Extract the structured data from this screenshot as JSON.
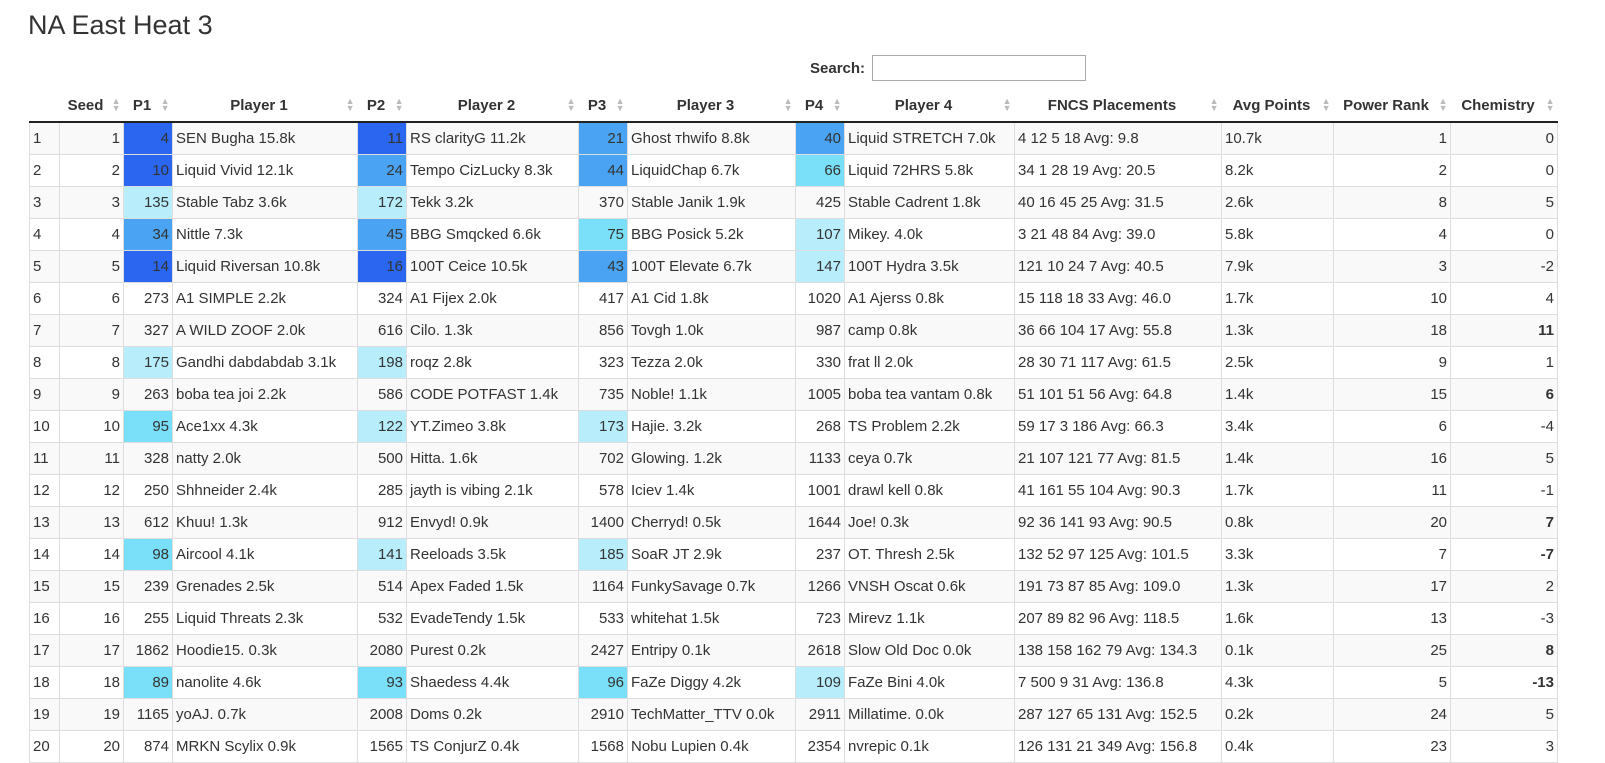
{
  "title": "NA East Heat 3",
  "search": {
    "label": "Search:",
    "value": ""
  },
  "columns": [
    "",
    "Seed",
    "P1",
    "Player 1",
    "P2",
    "Player 2",
    "P3",
    "Player 3",
    "P4",
    "Player 4",
    "FNCS Placements",
    "Avg Points",
    "Power Rank",
    "Chemistry"
  ],
  "rows": [
    [
      "1",
      "1",
      "4",
      "SEN Bugha 15.8k",
      "11",
      "RS clarityG 11.2k",
      "21",
      "Ghost тhwifo 8.8k",
      "40",
      "Liquid STRETCH 7.0k",
      "4 12 5 18 Avg: 9.8",
      "10.7k",
      "1",
      "0"
    ],
    [
      "2",
      "2",
      "10",
      "Liquid Vivid 12.1k",
      "24",
      "Tempo CizLucky 8.3k",
      "44",
      "LiquidChap 6.7k",
      "66",
      "Liquid 72HRS 5.8k",
      "34 1 28 19 Avg: 20.5",
      "8.2k",
      "2",
      "0"
    ],
    [
      "3",
      "3",
      "135",
      "Stable Tabz 3.6k",
      "172",
      "Tekk 3.2k",
      "370",
      "Stable Janik 1.9k",
      "425",
      "Stable Cadrent 1.8k",
      "40 16 45 25 Avg: 31.5",
      "2.6k",
      "8",
      "5"
    ],
    [
      "4",
      "4",
      "34",
      "Nittle 7.3k",
      "45",
      "BBG Smqcked 6.6k",
      "75",
      "BBG Posick 5.2k",
      "107",
      "Mikey. 4.0k",
      "3 21 48 84 Avg: 39.0",
      "5.8k",
      "4",
      "0"
    ],
    [
      "5",
      "5",
      "14",
      "Liquid Riversan 10.8k",
      "16",
      "100T Ceice 10.5k",
      "43",
      "100T Elevate 6.7k",
      "147",
      "100T Hydra 3.5k",
      "121 10 24 7 Avg: 40.5",
      "7.9k",
      "3",
      "-2"
    ],
    [
      "6",
      "6",
      "273",
      "A1 SIMPLE 2.2k",
      "324",
      "A1 Fijex 2.0k",
      "417",
      "A1 Cid 1.8k",
      "1020",
      "A1 Ajerss 0.8k",
      "15 118 18 33 Avg: 46.0",
      "1.7k",
      "10",
      "4"
    ],
    [
      "7",
      "7",
      "327",
      "A WILD ZOOF 2.0k",
      "616",
      "Cilo. 1.3k",
      "856",
      "Tovgh 1.0k",
      "987",
      "camp 0.8k",
      "36 66 104 17 Avg: 55.8",
      "1.3k",
      "18",
      "11"
    ],
    [
      "8",
      "8",
      "175",
      "Gandhi dabdabdab 3.1k",
      "198",
      "roqz 2.8k",
      "323",
      "Tezza 2.0k",
      "330",
      "frat ll 2.0k",
      "28 30 71 117 Avg: 61.5",
      "2.5k",
      "9",
      "1"
    ],
    [
      "9",
      "9",
      "263",
      "boba tea joi 2.2k",
      "586",
      "CODE POTFAST 1.4k",
      "735",
      "Noble! 1.1k",
      "1005",
      "boba tea vantam 0.8k",
      "51 101 51 56 Avg: 64.8",
      "1.4k",
      "15",
      "6"
    ],
    [
      "10",
      "10",
      "95",
      "Ace1xx 4.3k",
      "122",
      "YT.Zimeo 3.8k",
      "173",
      "Hajie. 3.2k",
      "268",
      "TS Problem 2.2k",
      "59 17 3 186 Avg: 66.3",
      "3.4k",
      "6",
      "-4"
    ],
    [
      "11",
      "11",
      "328",
      "natty 2.0k",
      "500",
      "Hitta. 1.6k",
      "702",
      "Glowing. 1.2k",
      "1133",
      "ceya 0.7k",
      "21 107 121 77 Avg: 81.5",
      "1.4k",
      "16",
      "5"
    ],
    [
      "12",
      "12",
      "250",
      "Shhneider 2.4k",
      "285",
      "jayth is vibing 2.1k",
      "578",
      "Iciev 1.4k",
      "1001",
      "drawl kell 0.8k",
      "41 161 55 104 Avg: 90.3",
      "1.7k",
      "11",
      "-1"
    ],
    [
      "13",
      "13",
      "612",
      "Khuu! 1.3k",
      "912",
      "Envyd! 0.9k",
      "1400",
      "Cherryd! 0.5k",
      "1644",
      "Joe! 0.3k",
      "92 36 141 93 Avg: 90.5",
      "0.8k",
      "20",
      "7"
    ],
    [
      "14",
      "14",
      "98",
      "Aircool 4.1k",
      "141",
      "Reeloads 3.5k",
      "185",
      "SoaR JT 2.9k",
      "237",
      "OT. Thresh 2.5k",
      "132 52 97 125 Avg: 101.5",
      "3.3k",
      "7",
      "-7"
    ],
    [
      "15",
      "15",
      "239",
      "Grenades 2.5k",
      "514",
      "Apex Faded 1.5k",
      "1164",
      "FunkySavage 0.7k",
      "1266",
      "VNSH Oscat 0.6k",
      "191 73 87 85 Avg: 109.0",
      "1.3k",
      "17",
      "2"
    ],
    [
      "16",
      "16",
      "255",
      "Liquid Threats 2.3k",
      "532",
      "EvadeTendy 1.5k",
      "533",
      "whitehat 1.5k",
      "723",
      "Mirevz 1.1k",
      "207 89 82 96 Avg: 118.5",
      "1.6k",
      "13",
      "-3"
    ],
    [
      "17",
      "17",
      "1862",
      "Hoodie15. 0.3k",
      "2080",
      "Purest 0.2k",
      "2427",
      "Entripy 0.1k",
      "2618",
      "Slow Old Doc 0.0k",
      "138 158 162 79 Avg: 134.3",
      "0.1k",
      "25",
      "8"
    ],
    [
      "18",
      "18",
      "89",
      "nanolite 4.6k",
      "93",
      "Shaedess 4.4k",
      "96",
      "FaZe Diggy 4.2k",
      "109",
      "FaZe Bini 4.0k",
      "7 500 9 31 Avg: 136.8",
      "4.3k",
      "5",
      "-13"
    ],
    [
      "19",
      "19",
      "1165",
      "yoAJ. 0.7k",
      "2008",
      "Doms 0.2k",
      "2910",
      "TechMatter_TTV 0.0k",
      "2911",
      "Millatime. 0.0k",
      "287 127 65 131 Avg: 152.5",
      "0.2k",
      "24",
      "5"
    ],
    [
      "20",
      "20",
      "874",
      "MRKN Scylix 0.9k",
      "1565",
      "TS ConjurZ 0.4k",
      "1568",
      "Nobu Lupien 0.4k",
      "2354",
      "nvrepic 0.1k",
      "126 131 21 349 Avg: 156.8",
      "0.4k",
      "23",
      "3"
    ]
  ],
  "rank_colors": {
    "top": "#2a66f0",
    "high": "#4aa3f3",
    "mid": "#7adff8",
    "low": "#b8eefb"
  }
}
